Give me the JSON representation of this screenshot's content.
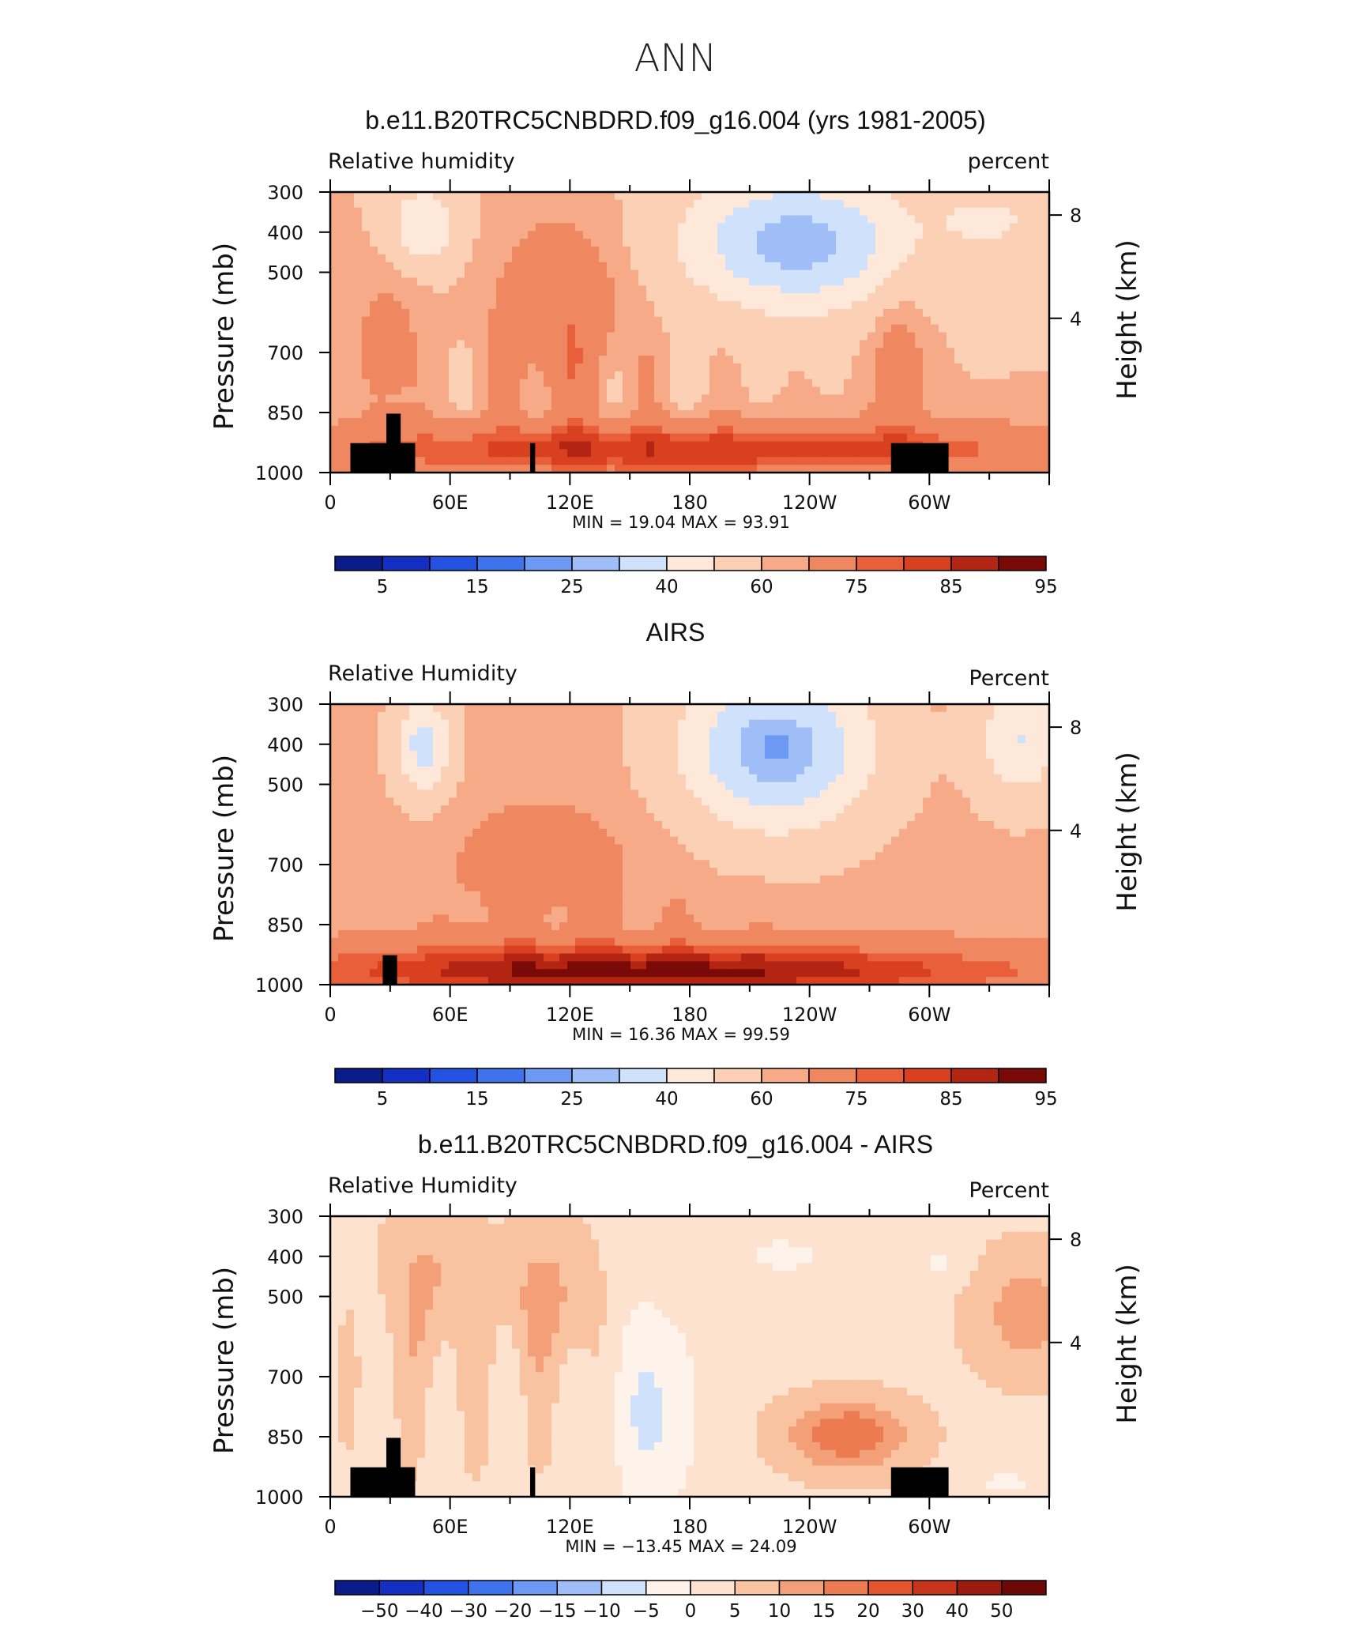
{
  "page": {
    "title": "ANN"
  },
  "palette": {
    "humidity": [
      "#0a1b8a",
      "#1430c4",
      "#2352e3",
      "#3f73ee",
      "#6b99f4",
      "#9fbdf6",
      "#cfe1fb",
      "#fde8d9",
      "#fbd0b4",
      "#f6aa87",
      "#ef8760",
      "#e85f3a",
      "#d8401f",
      "#b32413",
      "#7a0a08"
    ],
    "difference": [
      "#0a1b8a",
      "#1430c4",
      "#2352e3",
      "#3f73ee",
      "#6b99f4",
      "#9fbdf6",
      "#cfe1fb",
      "#fef3ea",
      "#fde2cf",
      "#f9c3a2",
      "#f39f78",
      "#ec7b52",
      "#e2552f",
      "#c8341a",
      "#9d1a0f",
      "#6e0707"
    ]
  },
  "panels": [
    {
      "title": "b.e11.B20TRC5CNBDRD.f09_g16.004 (yrs 1981-2005)",
      "left_label": "Relative  humidity",
      "right_label": "percent",
      "min_max": "MIN =    19.04   MAX =    93.91",
      "colorbar_labels": [
        "5",
        "15",
        "25",
        "40",
        "60",
        "75",
        "85",
        "95"
      ],
      "kind": "humidity"
    },
    {
      "title": "AIRS",
      "left_label": "Relative  Humidity",
      "right_label": "Percent",
      "min_max": "MIN =    16.36   MAX =    99.59",
      "colorbar_labels": [
        "5",
        "15",
        "25",
        "40",
        "60",
        "75",
        "85",
        "95"
      ],
      "kind": "humidity"
    },
    {
      "title": "b.e11.B20TRC5CNBDRD.f09_g16.004 - AIRS",
      "left_label": "Relative  Humidity",
      "right_label": "Percent",
      "min_max": "MIN =  −13.45   MAX =    24.09",
      "colorbar_labels": [
        "−50",
        "−40",
        "−30",
        "−20",
        "−15",
        "−10",
        "−5",
        "0",
        "5",
        "10",
        "15",
        "20",
        "30",
        "40",
        "50"
      ],
      "kind": "difference"
    }
  ],
  "chart_data": [
    {
      "type": "heatmap",
      "title": "b.e11.B20TRC5CNBDRD.f09_g16.004 (yrs 1981-2005)",
      "subtitle_left": "Relative  humidity",
      "subtitle_right": "percent",
      "xlabel": "",
      "ylabel": "Pressure  (mb)",
      "ylabel_right": "Height  (km)",
      "x_tick_labels": [
        "0",
        "60E",
        "120E",
        "180",
        "120W",
        "60W"
      ],
      "y_tick_labels": [
        "300",
        "400",
        "500",
        "700",
        "850",
        "1000"
      ],
      "y_right_tick_labels": [
        "8",
        "4"
      ],
      "ylim": [
        1000,
        300
      ],
      "y_scale": "log",
      "min": 19.04,
      "max": 93.91,
      "contour_levels": [
        5,
        10,
        15,
        20,
        25,
        30,
        40,
        50,
        60,
        65,
        75,
        80,
        85,
        90,
        95
      ],
      "colorbar_labels": [
        "5",
        "15",
        "25",
        "40",
        "60",
        "75",
        "85",
        "95"
      ]
    },
    {
      "type": "heatmap",
      "title": "AIRS",
      "subtitle_left": "Relative  Humidity",
      "subtitle_right": "Percent",
      "ylabel": "Pressure  (mb)",
      "ylabel_right": "Height  (km)",
      "x_tick_labels": [
        "0",
        "60E",
        "120E",
        "180",
        "120W",
        "60W"
      ],
      "y_tick_labels": [
        "300",
        "400",
        "500",
        "700",
        "850",
        "1000"
      ],
      "y_right_tick_labels": [
        "8",
        "4"
      ],
      "ylim": [
        1000,
        300
      ],
      "y_scale": "log",
      "min": 16.36,
      "max": 99.59,
      "colorbar_labels": [
        "5",
        "15",
        "25",
        "40",
        "60",
        "75",
        "85",
        "95"
      ]
    },
    {
      "type": "heatmap",
      "title": "b.e11.B20TRC5CNBDRD.f09_g16.004 - AIRS",
      "subtitle_left": "Relative  Humidity",
      "subtitle_right": "Percent",
      "ylabel": "Pressure  (mb)",
      "ylabel_right": "Height  (km)",
      "x_tick_labels": [
        "0",
        "60E",
        "120E",
        "180",
        "120W",
        "60W"
      ],
      "y_tick_labels": [
        "300",
        "400",
        "500",
        "700",
        "850",
        "1000"
      ],
      "y_right_tick_labels": [
        "8",
        "4"
      ],
      "ylim": [
        1000,
        300
      ],
      "y_scale": "log",
      "min": -13.45,
      "max": 24.09,
      "colorbar_labels": [
        "−50",
        "−40",
        "−30",
        "−20",
        "−15",
        "−10",
        "−5",
        "0",
        "5",
        "10",
        "15",
        "20",
        "30",
        "40",
        "50"
      ]
    }
  ],
  "axes": {
    "ylabel": "Pressure  (mb)",
    "ylabel_right": "Height  (km)",
    "x_tick_labels": [
      "0",
      "60E",
      "120E",
      "180",
      "120W",
      "60W"
    ],
    "y_tick_labels": [
      "300",
      "400",
      "500",
      "700",
      "850",
      "1000"
    ],
    "y_right_tick_labels": [
      "8",
      "4"
    ]
  }
}
